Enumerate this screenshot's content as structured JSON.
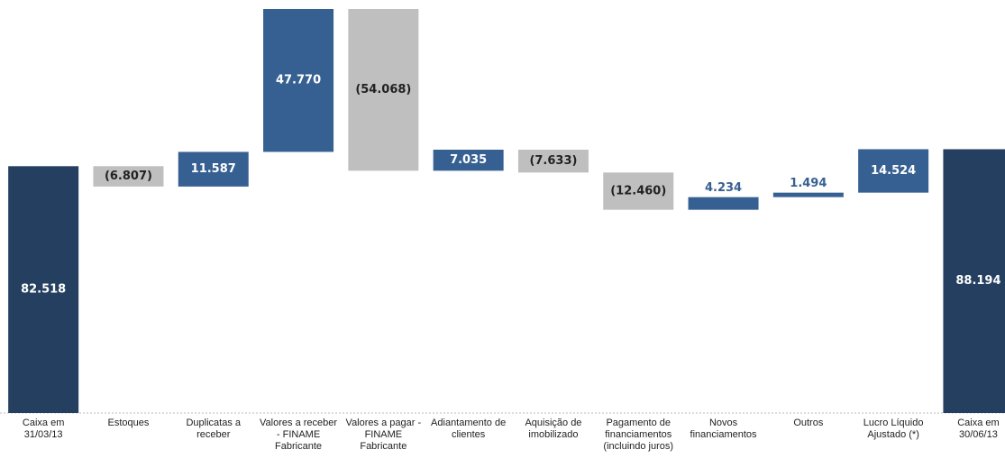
{
  "chart_data": {
    "type": "waterfall",
    "categories": [
      "Caixa em 31/03/13",
      "Estoques",
      "Duplicatas a receber",
      "Valores a receber - FINAME Fabricante",
      "Valores a pagar - FINAME Fabricante",
      "Adiantamento de clientes",
      "Aquisição de imobilizado",
      "Pagamento de financiamentos (incluindo juros)",
      "Novos financiamentos",
      "Outros",
      "Lucro Líquido Ajustado (*)",
      "Caixa em 30/06/13"
    ],
    "values": [
      82518,
      -6807,
      11587,
      47770,
      -54068,
      7035,
      -7633,
      -12460,
      4234,
      1494,
      14524,
      88194
    ],
    "value_labels": [
      "82.518",
      "(6.807)",
      "11.587",
      "47.770",
      "(54.068)",
      "7.035",
      "(7.633)",
      "(12.460)",
      "4.234",
      "1.494",
      "14.524",
      "88.194"
    ],
    "kinds": [
      "total",
      "delta",
      "delta",
      "delta",
      "delta",
      "delta",
      "delta",
      "delta",
      "delta",
      "delta",
      "delta",
      "total"
    ],
    "colors": {
      "total": "#243f60",
      "increase": "#376092",
      "decrease": "#bfbfbf"
    }
  }
}
